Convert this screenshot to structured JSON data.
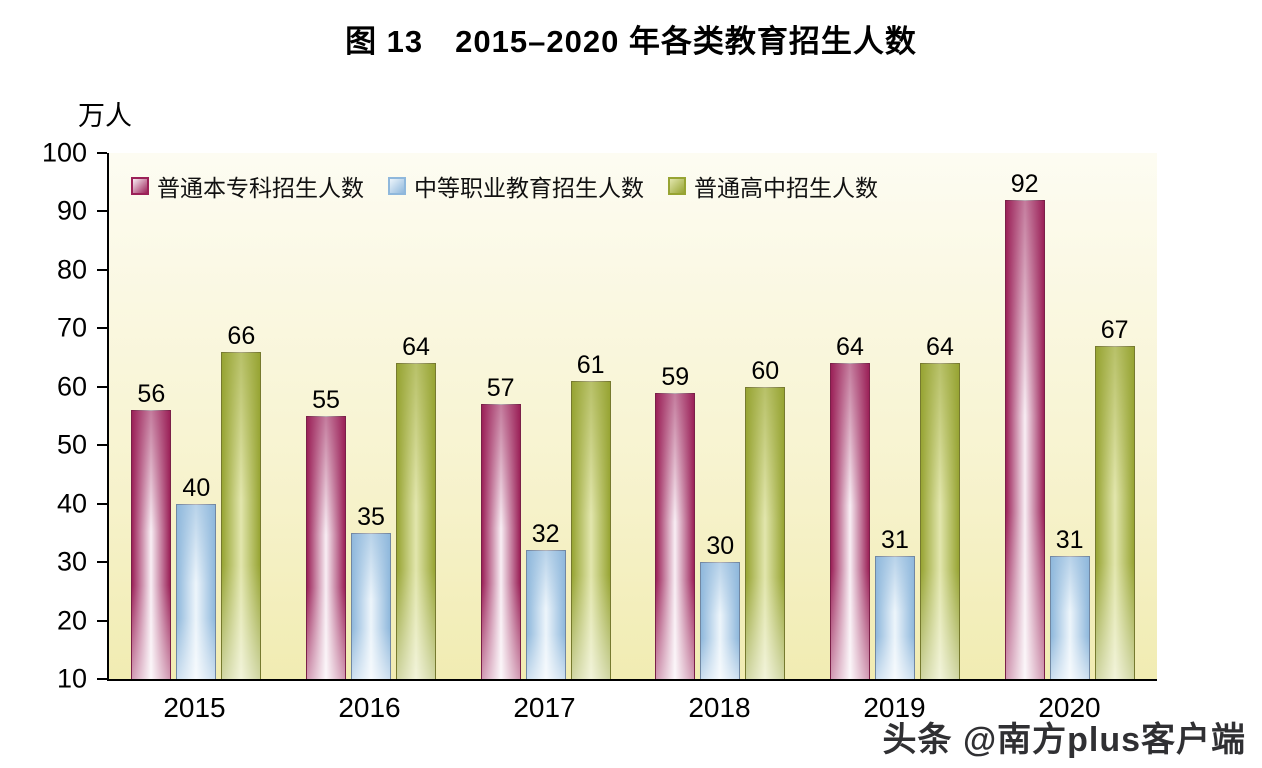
{
  "y_unit": "万人",
  "watermark": "头条 @南方plus客户端",
  "chart_data": {
    "type": "bar",
    "title": "图 13　2015–2020 年各类教育招生人数",
    "categories": [
      "2015",
      "2016",
      "2017",
      "2018",
      "2019",
      "2020"
    ],
    "series": [
      {
        "name": "普通本专科招生人数",
        "color": "#9b2158",
        "color_light": "#f8eef4",
        "values": [
          56,
          55,
          57,
          59,
          64,
          92
        ]
      },
      {
        "name": "中等职业教育招生人数",
        "color": "#8fb8dc",
        "color_light": "#edf5fb",
        "values": [
          40,
          35,
          32,
          30,
          31,
          31
        ]
      },
      {
        "name": "普通高中招生人数",
        "color": "#97a433",
        "color_light": "#e2e6ad",
        "values": [
          66,
          64,
          61,
          60,
          64,
          67
        ]
      }
    ],
    "xlabel": "",
    "ylabel": "万人",
    "ylim": [
      10,
      100
    ],
    "ystep": 10,
    "grid": false,
    "legend_position": "top-left-inside",
    "plot_background": "#f7f3cf"
  }
}
